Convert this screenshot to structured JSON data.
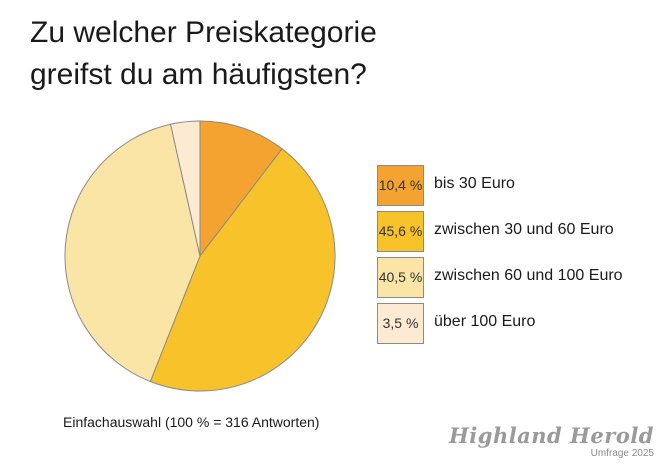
{
  "title_lines": [
    "Zu welcher Preiskategorie",
    "greifst du am häufigsten?"
  ],
  "footnote": "Einfachauswahl (100 % = 316 Antworten)",
  "brand": {
    "name": "Highland Herold",
    "sub": "Umfrage 2025"
  },
  "colors": {
    "bis30": "#f4a330",
    "30bis60": "#f8c22a",
    "60bis100": "#fbe5a6",
    "ueber100": "#fcebd2",
    "outline": "#8a8a8a"
  },
  "chart_data": {
    "type": "pie",
    "title": "Zu welcher Preiskategorie greifst du am häufigsten?",
    "slices": [
      {
        "label": "bis 30 Euro",
        "value": 10.4,
        "value_label": "10,4 %",
        "color": "#f4a330"
      },
      {
        "label": "zwischen 30 und 60 Euro",
        "value": 45.6,
        "value_label": "45,6 %",
        "color": "#f8c22a"
      },
      {
        "label": "zwischen 60 und 100 Euro",
        "value": 40.5,
        "value_label": "40,5 %",
        "color": "#fbe5a6"
      },
      {
        "label": "über 100 Euro",
        "value": 3.5,
        "value_label": "3,5 %",
        "color": "#fcebd2"
      }
    ],
    "legend_position": "right",
    "note": "Einfachauswahl (100 % = 316 Antworten)"
  }
}
